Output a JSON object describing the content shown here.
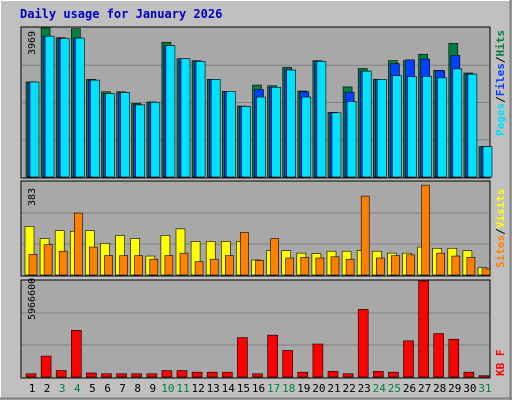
{
  "title": "Daily usage for January 2026",
  "colors": {
    "background": "#c0c0c0",
    "plot": "#a8a8a8",
    "hits": "#008040",
    "files": "#0040ff",
    "pages": "#00e0ff",
    "visits": "#ffff00",
    "sites": "#ff8000",
    "kbytes": "#ff0000",
    "title": "#0000c0",
    "weekend": "#008040"
  },
  "right_labels": {
    "pages": "Pages",
    "files": "Files",
    "hits": "Hits",
    "sites": "Sites",
    "visits": "Visits",
    "kbytes": "KB F",
    "sep": "/"
  },
  "chart_data": [
    {
      "type": "bar",
      "title": "Daily usage for January 2026",
      "categories": [
        "1",
        "2",
        "3",
        "4",
        "5",
        "6",
        "7",
        "8",
        "9",
        "10",
        "11",
        "12",
        "13",
        "14",
        "15",
        "16",
        "17",
        "18",
        "19",
        "20",
        "21",
        "22",
        "23",
        "24",
        "25",
        "26",
        "27",
        "28",
        "29",
        "30",
        "31"
      ],
      "weekend_days": [
        "3",
        "4",
        "10",
        "11",
        "17",
        "18",
        "24",
        "25",
        "31"
      ],
      "ymax_label": "3969",
      "ylim": [
        0,
        3969
      ],
      "series": [
        {
          "name": "Hits",
          "values": [
            2530,
            3969,
            3710,
            3950,
            2600,
            2270,
            2270,
            1960,
            2000,
            3590,
            3150,
            3100,
            2600,
            2280,
            1890,
            2450,
            2430,
            2920,
            2290,
            3100,
            1720,
            2400,
            2890,
            2600,
            3100,
            3100,
            3270,
            2840,
            3560,
            2770,
            810
          ]
        },
        {
          "name": "Files",
          "values": [
            2530,
            3750,
            3690,
            3700,
            2580,
            2220,
            2250,
            1920,
            1990,
            3500,
            3150,
            3080,
            2600,
            2280,
            1880,
            2330,
            2390,
            2850,
            2270,
            3080,
            1710,
            2260,
            2820,
            2600,
            3020,
            3120,
            3140,
            2830,
            3240,
            2740,
            810
          ]
        },
        {
          "name": "Pages",
          "values": [
            2530,
            3750,
            3690,
            3700,
            2580,
            2220,
            2250,
            1920,
            1990,
            3500,
            3150,
            3080,
            2600,
            2280,
            1880,
            2130,
            2390,
            2850,
            2130,
            3080,
            1710,
            2010,
            2820,
            2600,
            2700,
            2670,
            2680,
            2640,
            2880,
            2740,
            810
          ]
        }
      ]
    },
    {
      "type": "bar",
      "categories": [
        "1",
        "2",
        "3",
        "4",
        "5",
        "6",
        "7",
        "8",
        "9",
        "10",
        "11",
        "12",
        "13",
        "14",
        "15",
        "16",
        "17",
        "18",
        "19",
        "20",
        "21",
        "22",
        "23",
        "24",
        "25",
        "26",
        "27",
        "28",
        "29",
        "30",
        "31"
      ],
      "ymax_label": "383",
      "ylim": [
        0,
        383
      ],
      "series": [
        {
          "name": "Visits",
          "values": [
            200,
            150,
            183,
            180,
            183,
            130,
            163,
            150,
            78,
            163,
            190,
            138,
            138,
            138,
            138,
            62,
            100,
            100,
            90,
            88,
            98,
            98,
            100,
            98,
            90,
            90,
            115,
            110,
            110,
            100,
            30
          ]
        },
        {
          "name": "Sites",
          "values": [
            85,
            125,
            98,
            255,
            115,
            80,
            80,
            80,
            65,
            80,
            90,
            55,
            65,
            80,
            175,
            60,
            150,
            70,
            73,
            70,
            75,
            65,
            325,
            70,
            80,
            83,
            370,
            90,
            78,
            73,
            25
          ]
        }
      ]
    },
    {
      "type": "bar",
      "categories": [
        "1",
        "2",
        "3",
        "4",
        "5",
        "6",
        "7",
        "8",
        "9",
        "10",
        "11",
        "12",
        "13",
        "14",
        "15",
        "16",
        "17",
        "18",
        "19",
        "20",
        "21",
        "22",
        "23",
        "24",
        "25",
        "26",
        "27",
        "28",
        "29",
        "30",
        "31"
      ],
      "ymax_label": "5966600",
      "ylim": [
        0,
        5966600
      ],
      "series": [
        {
          "name": "KB F",
          "values": [
            200000,
            1300000,
            400000,
            2900000,
            250000,
            200000,
            200000,
            200000,
            200000,
            400000,
            400000,
            300000,
            300000,
            300000,
            2450000,
            200000,
            2600000,
            1650000,
            300000,
            2050000,
            350000,
            200000,
            4200000,
            350000,
            300000,
            2250000,
            5966600,
            2700000,
            2350000,
            300000,
            80000
          ]
        }
      ]
    }
  ]
}
